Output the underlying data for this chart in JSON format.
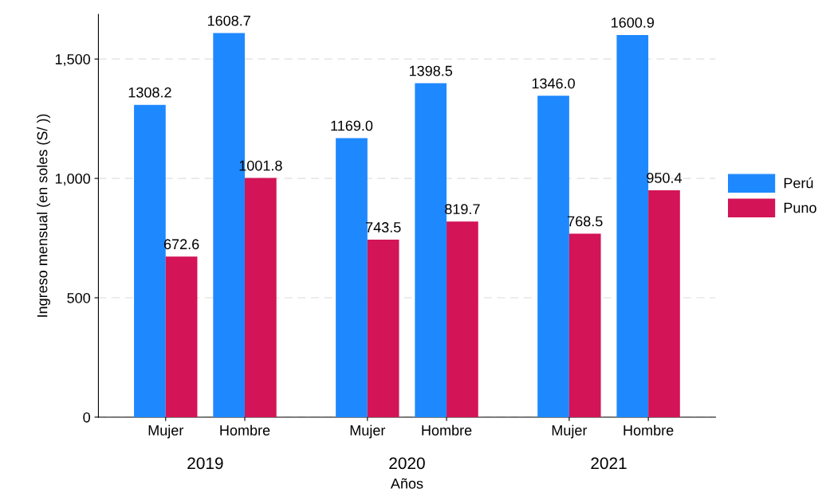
{
  "chart_data": {
    "type": "bar",
    "xlabel": "Años",
    "ylabel": "Ingreso mensual (en soles (S/ ))",
    "categories": [
      "Mujer",
      "Hombre",
      "Mujer",
      "Hombre",
      "Mujer",
      "Hombre"
    ],
    "series": [
      {
        "name": "Perú",
        "color": "#1e88ff",
        "values": [
          1308.2,
          1608.7,
          1169.0,
          1398.5,
          1346.0,
          1600.9
        ],
        "value_labels": [
          "1308.2",
          "1608.7",
          "1169.0",
          "1398.5",
          "1346.0",
          "1600.9"
        ]
      },
      {
        "name": "Puno",
        "color": "#d31457",
        "values": [
          672.6,
          1001.8,
          743.5,
          819.7,
          768.5,
          950.4
        ],
        "value_labels": [
          "672.6",
          "1001.8",
          "743.5",
          "819.7",
          "768.5",
          "950.4"
        ]
      }
    ],
    "annotations": [
      "2019",
      "2020",
      "2021"
    ],
    "ylim": [
      0,
      1687
    ],
    "yticks": [
      {
        "value": 0,
        "label": "0"
      },
      {
        "value": 500,
        "label": "500"
      },
      {
        "value": 1000,
        "label": "1,000"
      },
      {
        "value": 1500,
        "label": "1,500"
      }
    ],
    "grid": "y",
    "legend": "right"
  }
}
